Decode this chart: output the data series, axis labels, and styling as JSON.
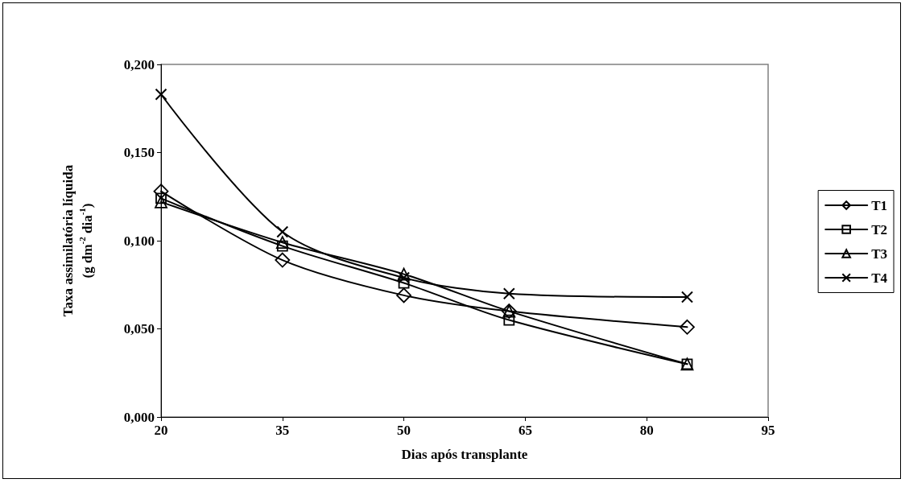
{
  "chart_data": {
    "type": "line",
    "xlabel": "Dias após transplante",
    "ylabel": "Taxa assimilatória líquida\n(g dm$^{-2}$ dia$^{-1}$)",
    "x": [
      20,
      35,
      50,
      63,
      85
    ],
    "xlim": [
      20,
      95
    ],
    "xticks": [
      20,
      35,
      50,
      65,
      80,
      95
    ],
    "ylim": [
      0,
      0.2
    ],
    "yticks": [
      {
        "value": 0,
        "label": "0,000"
      },
      {
        "value": 0.05,
        "label": "0,050"
      },
      {
        "value": 0.1,
        "label": "0,100"
      },
      {
        "value": 0.15,
        "label": "0,150"
      },
      {
        "value": 0.2,
        "label": "0,200"
      }
    ],
    "grid": false,
    "legend": "right",
    "line_style": "solid",
    "series": [
      {
        "name": "T1",
        "color": "#000000",
        "marker": "diamond",
        "values": [
          0.128,
          0.089,
          0.069,
          0.06,
          0.051
        ]
      },
      {
        "name": "T2",
        "color": "#000000",
        "marker": "square",
        "values": [
          0.124,
          0.097,
          0.076,
          0.055,
          0.03
        ]
      },
      {
        "name": "T3",
        "color": "#000000",
        "marker": "triangle",
        "values": [
          0.122,
          0.099,
          0.081,
          0.06,
          0.03
        ]
      },
      {
        "name": "T4",
        "color": "#000000",
        "marker": "cross",
        "values": [
          0.183,
          0.105,
          0.079,
          0.07,
          0.068
        ]
      }
    ]
  }
}
